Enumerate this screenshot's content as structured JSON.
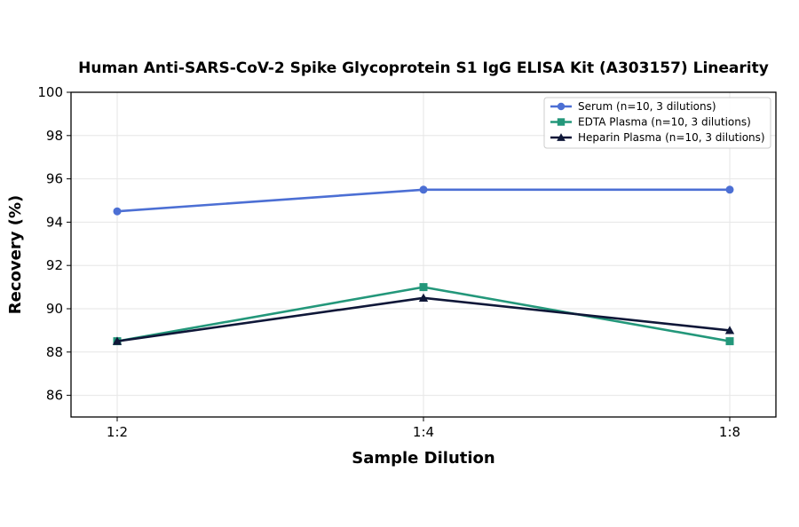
{
  "chart_data": {
    "type": "line",
    "title": "Human Anti-SARS-CoV-2 Spike Glycoprotein S1 IgG ELISA Kit (A303157) Linearity",
    "xlabel": "Sample Dilution",
    "ylabel": "Recovery (%)",
    "categories": [
      "1:2",
      "1:4",
      "1:8"
    ],
    "ylim": [
      85,
      100
    ],
    "yticks": [
      86,
      88,
      90,
      92,
      94,
      96,
      98,
      100
    ],
    "grid": true,
    "legend_position": "top-right",
    "series": [
      {
        "name": "Serum (n=10, 3 dilutions)",
        "values": [
          94.5,
          95.5,
          95.5
        ],
        "color": "#4c6fd4",
        "marker": "circle"
      },
      {
        "name": "EDTA Plasma (n=10, 3 dilutions)",
        "values": [
          88.5,
          91.0,
          88.5
        ],
        "color": "#23977a",
        "marker": "square"
      },
      {
        "name": "Heparin Plasma (n=10, 3 dilutions)",
        "values": [
          88.5,
          90.5,
          89.0
        ],
        "color": "#0f1738",
        "marker": "triangle"
      }
    ]
  }
}
